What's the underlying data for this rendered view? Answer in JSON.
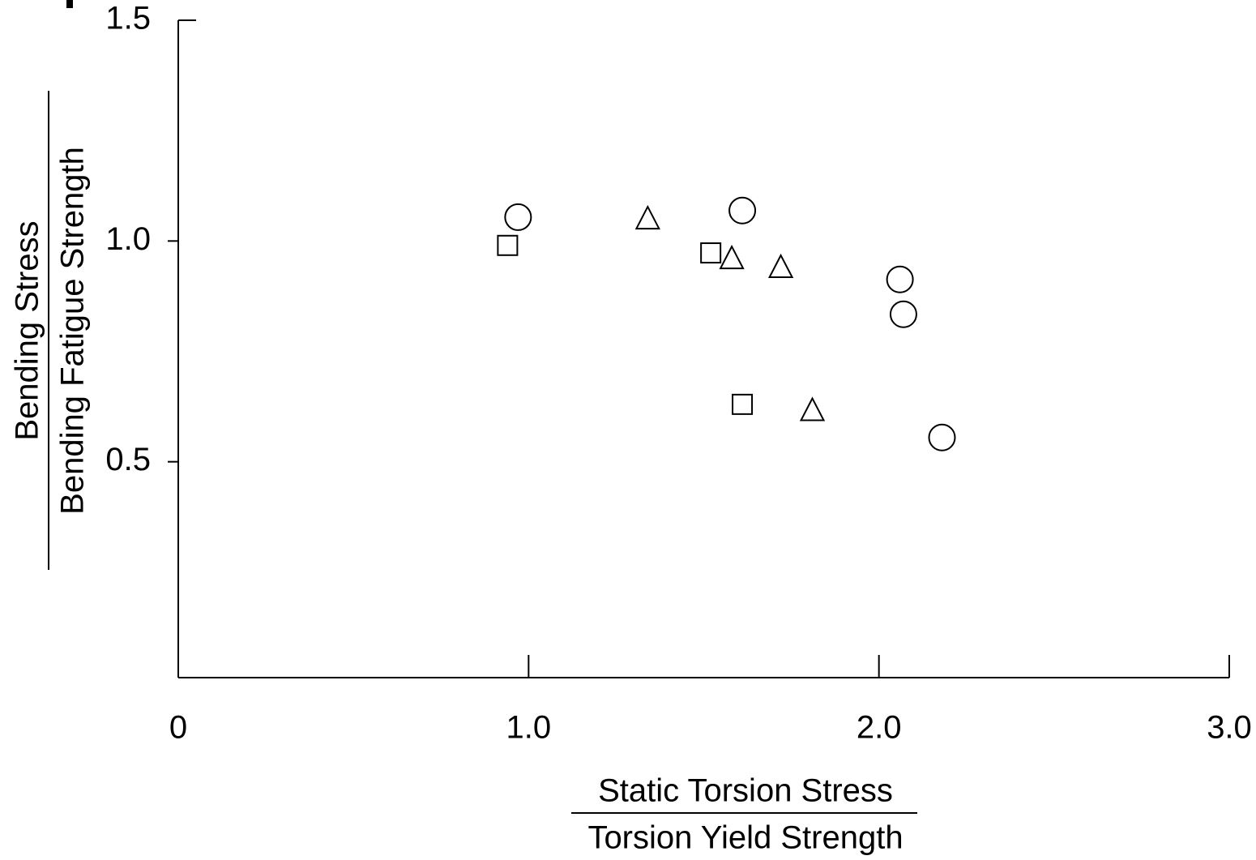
{
  "chart_data": {
    "type": "scatter",
    "xlabel": [
      "Static Torsion Stress",
      "Torsion Yield Strength"
    ],
    "ylabel": [
      "Bending Stress",
      "Bending Fatigue Strength"
    ],
    "xlim": [
      0,
      3
    ],
    "xticks": [
      0,
      {
        "value": 1,
        "label": "1.0"
      },
      {
        "value": 2,
        "label": "2.0"
      },
      {
        "value": 3,
        "label": "3.0"
      }
    ],
    "ylim": [
      0,
      1.5
    ],
    "yticks": [
      0.5,
      {
        "value": 1,
        "label": "1.0"
      },
      1.5
    ],
    "grid": false,
    "series": [
      {
        "marker": "circle",
        "color": "#000000",
        "x": [
          0.97,
          1.61,
          2.06,
          2.07,
          2.18
        ],
        "values": [
          1.054,
          1.069,
          0.913,
          0.834,
          0.555
        ]
      },
      {
        "marker": "square",
        "color": "#000000",
        "x": [
          0.94,
          1.52,
          1.61
        ],
        "values": [
          0.99,
          0.973,
          0.63
        ]
      },
      {
        "marker": "triangle",
        "color": "#000000",
        "x": [
          1.34,
          1.58,
          1.72,
          1.81
        ],
        "values": [
          1.05,
          0.96,
          0.94,
          0.616
        ]
      }
    ]
  }
}
